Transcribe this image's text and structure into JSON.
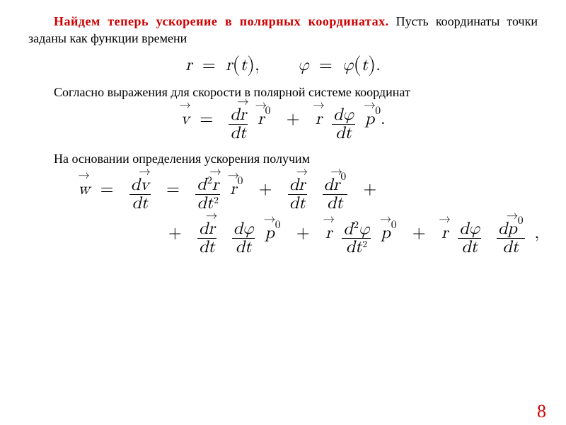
{
  "colors": {
    "emphasis": "#d00000",
    "pagenum": "#d00000",
    "text": "#000000",
    "background": "#ffffff"
  },
  "para1_emph": "Найдем теперь ускорение в полярных координатах.",
  "para1_rest": " Пусть координаты точки заданы как функции времени",
  "para2": "Согласно выражения для скорости в полярной системе координат",
  "para3": "На основании определения ускорения получим",
  "page_number": "8",
  "equations": {
    "eq1": {
      "plain": "r = r(t),    φ = φ(t)."
    },
    "eq2": {
      "plain": "v = (dr/dt) r⁰ + r (dφ/dt) p⁰."
    },
    "eq3": {
      "plain_line1": "w = dv/dt = (d²r/dt²) r⁰ + (dr/dt)(dr⁰/dt) +",
      "plain_line2": "+ (dr/dt)(dφ/dt) p⁰ + r (d²φ/dt²) p⁰ + r (dφ/dt)(dp⁰/dt),"
    }
  },
  "typography": {
    "body_font": "Times New Roman",
    "body_fontsize_pt": 14,
    "eq_fontsize_pt": 18
  }
}
